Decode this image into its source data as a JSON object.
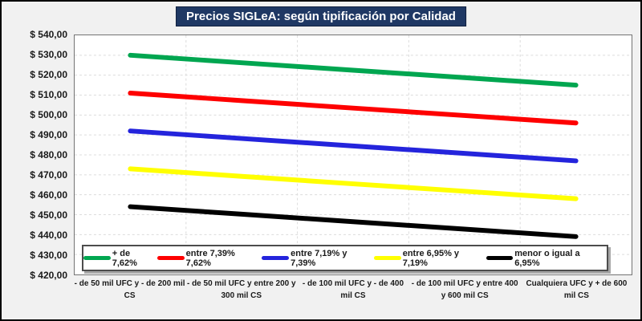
{
  "styles": {
    "background": "#F1F1F1",
    "outer_border": "#000000",
    "title_bg": "#1F3864",
    "title_color": "#FFFFFF",
    "plot_border": "#737373",
    "gridline_color": "#DCDCDC",
    "axis_text_color": "#1A1A1A"
  },
  "chart_data": {
    "type": "line",
    "title": "Precios SIGLeA: según tipificación por Calidad",
    "xlabel": "",
    "ylabel": "",
    "grid": true,
    "legend_position": "bottom",
    "ylim": [
      420,
      540
    ],
    "ytick_step": 10,
    "ytick_format": "$ {value},00",
    "categories": [
      "- de 50 mil UFC y - de 200 mil\nCS",
      "- de 50 mil UFC y entre  200 y\n300 mil CS",
      "- de 100 mil UFC y - de 400\nmil CS",
      "- de 100 mil UFC y entre  400\ny 600 mil CS",
      "Cualquiera UFC y + de 600\nmil CS"
    ],
    "series": [
      {
        "name": "+ de 7,62%",
        "color": "#00A650",
        "values": [
          530.0,
          526.25,
          522.5,
          518.75,
          515.0
        ]
      },
      {
        "name": "entre 7,39% 7,62%",
        "color": "#FE0000",
        "values": [
          511.0,
          507.25,
          503.5,
          499.75,
          496.0
        ]
      },
      {
        "name": "entre 7,19% y 7,39%",
        "color": "#2424DC",
        "values": [
          492.0,
          488.25,
          484.5,
          480.75,
          477.0
        ]
      },
      {
        "name": "entre 6,95% y 7,19%",
        "color": "#FFFF00",
        "values": [
          473.0,
          469.25,
          465.5,
          461.75,
          458.0
        ]
      },
      {
        "name": "menor o igual a 6,95%",
        "color": "#000000",
        "values": [
          454.0,
          450.25,
          446.5,
          442.75,
          439.0
        ]
      }
    ]
  }
}
